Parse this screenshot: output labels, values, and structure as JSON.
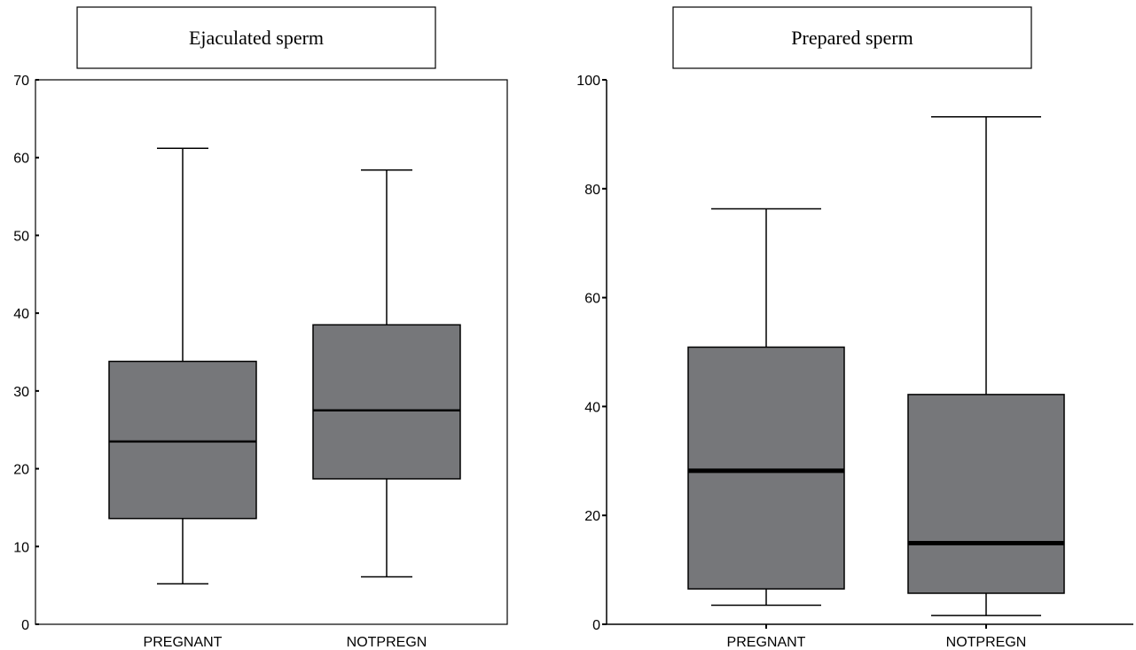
{
  "chart_data": [
    {
      "type": "boxplot",
      "title": "Ejaculated sperm",
      "xlabel": "",
      "ylabel": "",
      "ylim": [
        0,
        70
      ],
      "yticks": [
        0,
        10,
        20,
        30,
        40,
        50,
        60,
        70
      ],
      "categories": [
        "PREGNANT",
        "NOTPREGN"
      ],
      "boxes": [
        {
          "category": "PREGNANT",
          "min": 5.2,
          "q1": 13.6,
          "median": 23.5,
          "q3": 33.8,
          "max": 61.2
        },
        {
          "category": "NOTPREGN",
          "min": 6.1,
          "q1": 18.7,
          "median": 27.5,
          "q3": 38.5,
          "max": 58.4
        }
      ],
      "box_color": "#76777a",
      "grid": false
    },
    {
      "type": "boxplot",
      "title": "Prepared sperm",
      "xlabel": "",
      "ylabel": "",
      "ylim": [
        0,
        100
      ],
      "yticks": [
        0,
        20,
        40,
        60,
        80,
        100
      ],
      "categories": [
        "PREGNANT",
        "NOTPREGN"
      ],
      "boxes": [
        {
          "category": "PREGNANT",
          "min": 3.5,
          "q1": 6.5,
          "median": 28.2,
          "q3": 50.9,
          "max": 76.3
        },
        {
          "category": "NOTPREGN",
          "min": 1.6,
          "q1": 5.7,
          "median": 14.9,
          "q3": 42.2,
          "max": 93.2
        }
      ],
      "box_color": "#76777a",
      "grid": false
    }
  ]
}
